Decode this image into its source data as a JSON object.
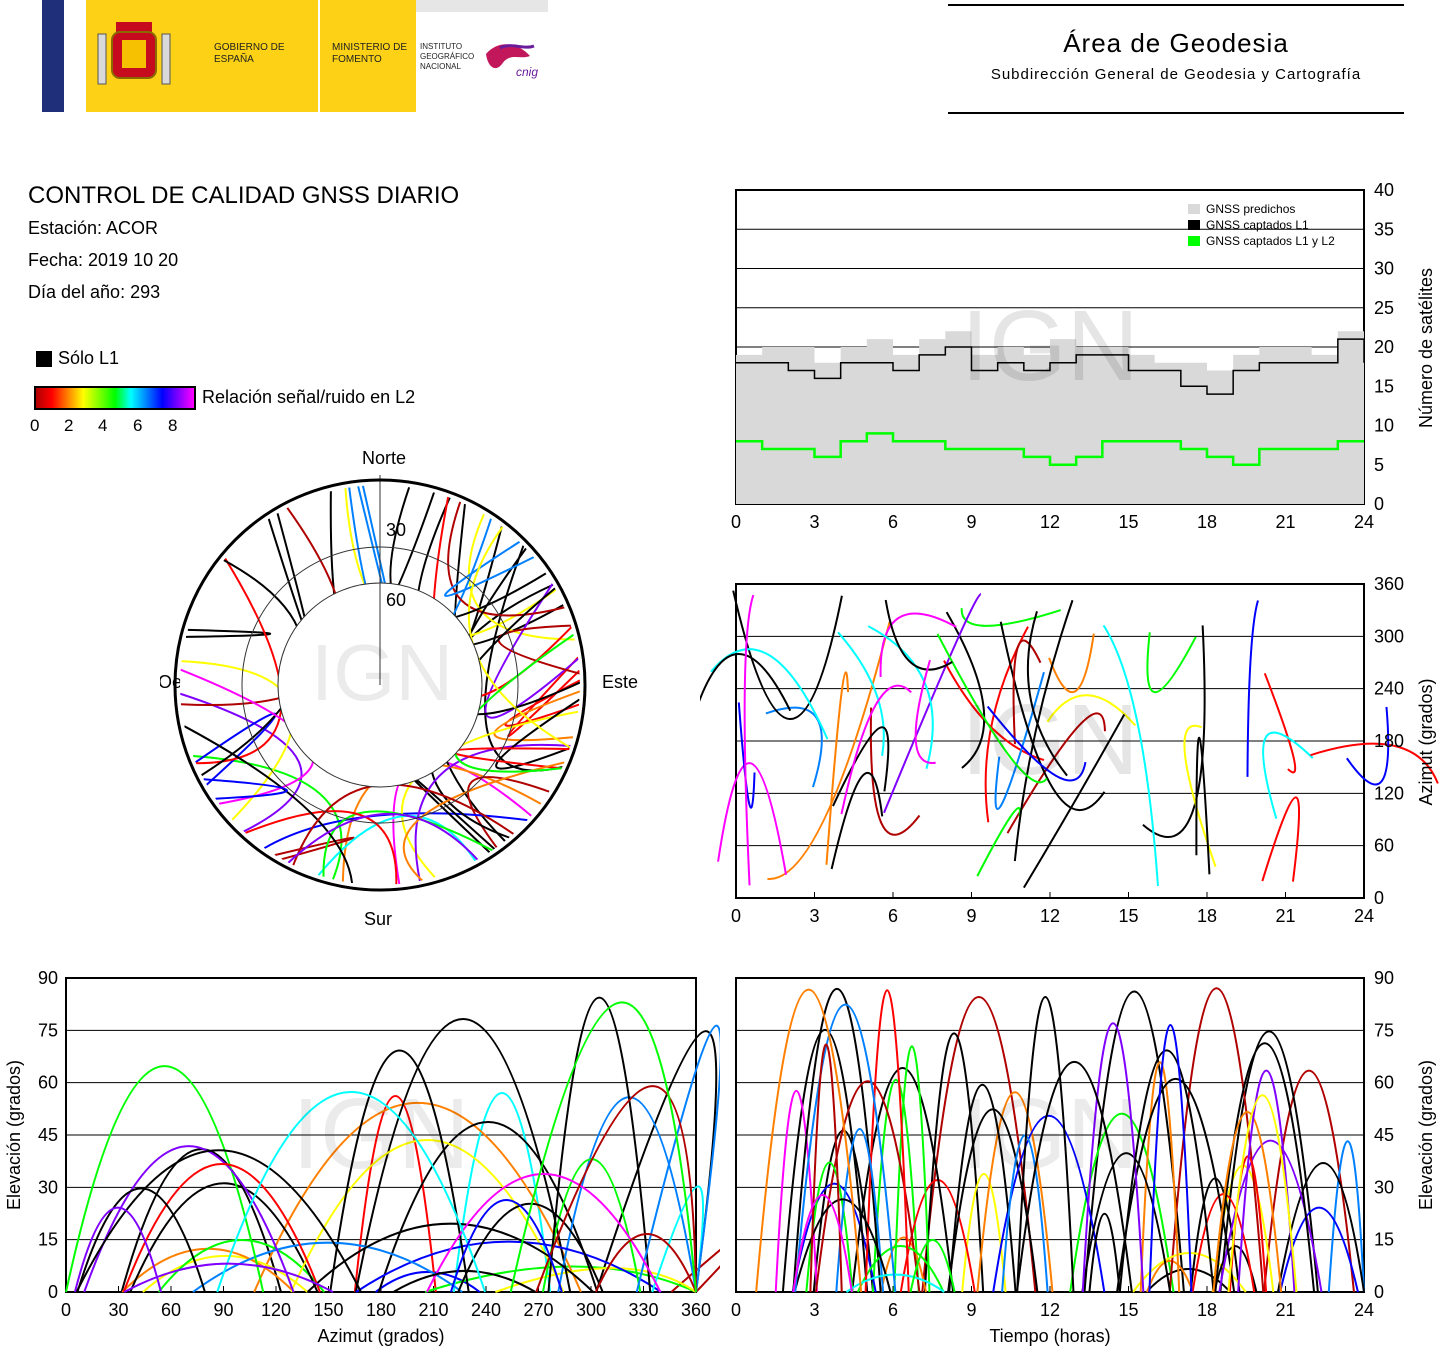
{
  "header": {
    "logo_gobierno": "GOBIERNO DE ESPAÑA",
    "logo_ministerio": "MINISTERIO DE FOMENTO",
    "logo_instituto": "INSTITUTO GEOGRÁFICO NACIONAL",
    "logo_cnig": "cnig",
    "area_title": "Área de Geodesia",
    "area_subtitle": "Subdirección General de Geodesia y Cartografía"
  },
  "info": {
    "title": "CONTROL DE CALIDAD GNSS DIARIO",
    "station": "Estación: ACOR",
    "date": "Fecha: 2019 10 20",
    "doy": "Día del año: 293"
  },
  "legend": {
    "solo_l1": "Sólo L1",
    "snr_label": "Relación señal/ruido en L2",
    "snr_ticks": [
      "0",
      "2",
      "4",
      "6",
      "8"
    ],
    "snr_colors": [
      "#b00000",
      "#ff0000",
      "#ff8000",
      "#ffff00",
      "#00ff00",
      "#00ffff",
      "#0080ff",
      "#0000ff",
      "#8000ff",
      "#ff00ff"
    ]
  },
  "watermark": "IGN",
  "chart_data": [
    {
      "type": "polar-skyplot",
      "labels": {
        "north": "Norte",
        "south": "Sur",
        "west": "Oeste",
        "east": "Este"
      },
      "rings": [
        "30",
        "60"
      ]
    },
    {
      "type": "area",
      "ylabel": "Número de satélites",
      "xlabel": "",
      "x_ticks": [
        "0",
        "3",
        "6",
        "9",
        "12",
        "15",
        "18",
        "21",
        "24"
      ],
      "y_ticks": [
        "0",
        "5",
        "10",
        "15",
        "20",
        "25",
        "30",
        "35",
        "40"
      ],
      "xlim": [
        0,
        24
      ],
      "ylim": [
        0,
        40
      ],
      "legend": [
        "GNSS predichos",
        "GNSS captados L1",
        "GNSS captados L1 y L2"
      ],
      "legend_colors": [
        "#d9d9d9",
        "#000000",
        "#00ff00"
      ],
      "x": [
        0,
        1,
        2,
        3,
        4,
        5,
        6,
        7,
        8,
        9,
        10,
        11,
        12,
        13,
        14,
        15,
        16,
        17,
        18,
        19,
        20,
        21,
        22,
        23,
        24
      ],
      "series": [
        {
          "name": "GNSS predichos",
          "values": [
            19,
            20,
            20,
            18,
            20,
            21,
            19,
            21,
            22,
            19,
            20,
            19,
            21,
            20,
            20,
            19,
            18,
            18,
            17,
            19,
            20,
            20,
            19,
            22,
            19
          ]
        },
        {
          "name": "GNSS captados L1",
          "values": [
            18,
            18,
            17,
            16,
            18,
            18,
            17,
            19,
            20,
            17,
            18,
            17,
            18,
            19,
            19,
            17,
            17,
            15,
            14,
            17,
            18,
            18,
            18,
            21,
            18
          ]
        },
        {
          "name": "GNSS captados L1 y L2",
          "values": [
            8,
            7,
            7,
            6,
            8,
            9,
            8,
            8,
            7,
            7,
            7,
            6,
            5,
            6,
            8,
            8,
            8,
            7,
            6,
            5,
            7,
            7,
            7,
            8,
            8
          ]
        }
      ]
    },
    {
      "type": "scatter",
      "ylabel": "Azimut (grados)",
      "xlabel": "",
      "x_ticks": [
        "0",
        "3",
        "6",
        "9",
        "12",
        "15",
        "18",
        "21",
        "24"
      ],
      "y_ticks": [
        "0",
        "60",
        "120",
        "180",
        "240",
        "300",
        "360"
      ],
      "xlim": [
        0,
        24
      ],
      "ylim": [
        0,
        360
      ]
    },
    {
      "type": "scatter",
      "xlabel": "Azimut (grados)",
      "ylabel": "Elevación (grados)",
      "x_ticks": [
        "0",
        "30",
        "60",
        "90",
        "120",
        "150",
        "180",
        "210",
        "240",
        "270",
        "300",
        "330",
        "360"
      ],
      "y_ticks": [
        "0",
        "15",
        "30",
        "45",
        "60",
        "75",
        "90"
      ],
      "xlim": [
        0,
        360
      ],
      "ylim": [
        0,
        90
      ]
    },
    {
      "type": "scatter",
      "xlabel": "Tiempo (horas)",
      "ylabel": "Elevación (grados)",
      "x_ticks": [
        "0",
        "3",
        "6",
        "9",
        "12",
        "15",
        "18",
        "21",
        "24"
      ],
      "y_ticks": [
        "0",
        "15",
        "30",
        "45",
        "60",
        "75",
        "90"
      ],
      "xlim": [
        0,
        24
      ],
      "ylim": [
        0,
        90
      ]
    }
  ]
}
